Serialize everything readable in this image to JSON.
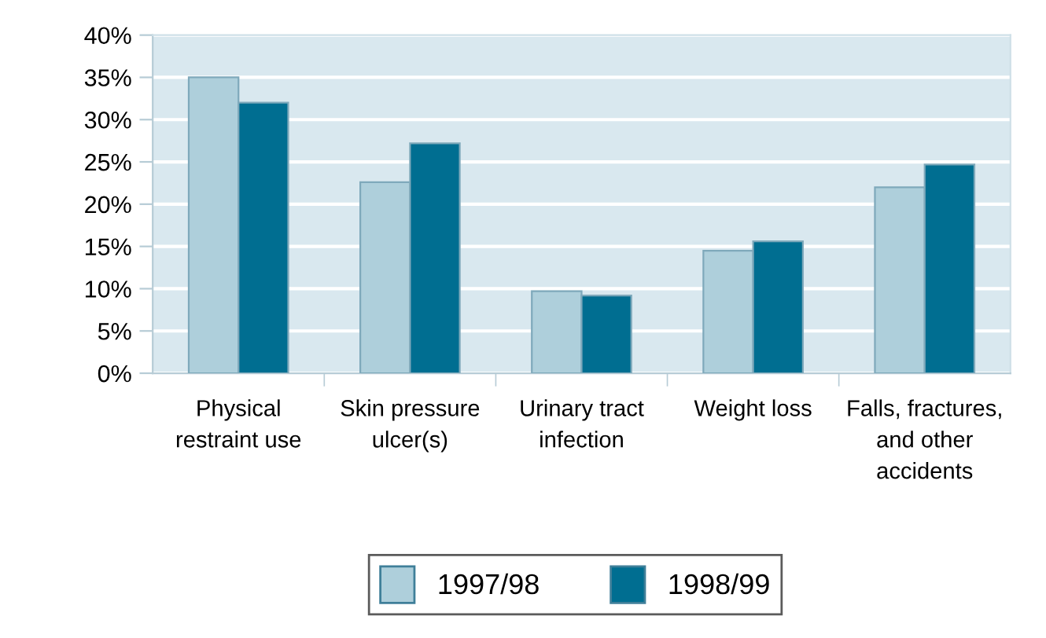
{
  "chart_data": {
    "type": "bar",
    "categories": [
      "Physical\nrestraint use",
      "Skin pressure\nulcer(s)",
      "Urinary tract\ninfection",
      "Weight loss",
      "Falls, fractures,\nand other\naccidents"
    ],
    "series": [
      {
        "name": "1997/98",
        "color": "#aecfdb",
        "values": [
          35.0,
          22.6,
          9.7,
          14.5,
          22.0
        ]
      },
      {
        "name": "1998/99",
        "color": "#006e91",
        "values": [
          32.0,
          27.2,
          9.2,
          15.6,
          24.7
        ]
      }
    ],
    "ylim": [
      0,
      40
    ],
    "yticks": [
      {
        "value": 0,
        "label": "0%"
      },
      {
        "value": 5,
        "label": "5%"
      },
      {
        "value": 10,
        "label": "10%"
      },
      {
        "value": 15,
        "label": "15%"
      },
      {
        "value": 20,
        "label": "20%"
      },
      {
        "value": 25,
        "label": "25%"
      },
      {
        "value": 30,
        "label": "30%"
      },
      {
        "value": 35,
        "label": "35%"
      },
      {
        "value": 40,
        "label": "40%"
      }
    ],
    "grid": "y",
    "legend": "bottom"
  }
}
